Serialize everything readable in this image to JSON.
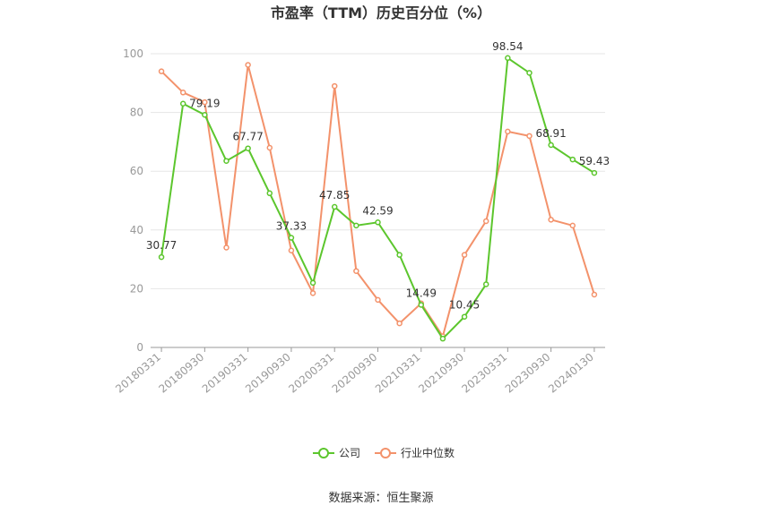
{
  "chart_data": {
    "type": "line",
    "title": "市盈率（TTM）历史百分位（%）",
    "xlabel": "",
    "ylabel": "",
    "ylim": [
      0,
      100
    ],
    "yticks": [
      0,
      20,
      40,
      60,
      80,
      100
    ],
    "grid": true,
    "legend_position": "bottom",
    "x": [
      "20180331",
      "20180630",
      "20180930",
      "20181231",
      "20190331",
      "20190630",
      "20190930",
      "20191231",
      "20200331",
      "20200630",
      "20200930",
      "20201231",
      "20210331",
      "20210630",
      "20210930",
      "20211231",
      "20230331",
      "20230630",
      "20230930",
      "20231231",
      "20240130"
    ],
    "x_tick_labels": [
      "20180331",
      "20180930",
      "20190331",
      "20190930",
      "20200331",
      "20200930",
      "20210331",
      "20210930",
      "20230331",
      "20230930",
      "20240130"
    ],
    "series": [
      {
        "name": "公司",
        "color": "#5cc62d",
        "values": [
          30.77,
          83.0,
          79.19,
          63.5,
          67.77,
          52.5,
          37.33,
          22.0,
          47.85,
          41.5,
          42.59,
          31.5,
          14.49,
          3.0,
          10.45,
          21.5,
          98.54,
          93.5,
          68.91,
          64.0,
          59.43
        ],
        "data_labels": {
          "0": "30.77",
          "2": "79.19",
          "4": "67.77",
          "6": "37.33",
          "8": "47.85",
          "10": "42.59",
          "12": "14.49",
          "14": "10.45",
          "16": "98.54",
          "18": "68.91",
          "20": "59.43"
        }
      },
      {
        "name": "行业中位数",
        "color": "#f3926b",
        "values": [
          94.0,
          86.8,
          83.5,
          34.0,
          96.2,
          68.0,
          33.0,
          18.5,
          89.0,
          26.0,
          16.2,
          8.2,
          15.0,
          3.8,
          31.5,
          43.0,
          73.5,
          72.0,
          43.5,
          41.5,
          18.0
        ]
      }
    ]
  },
  "source": "数据来源：恒生聚源"
}
